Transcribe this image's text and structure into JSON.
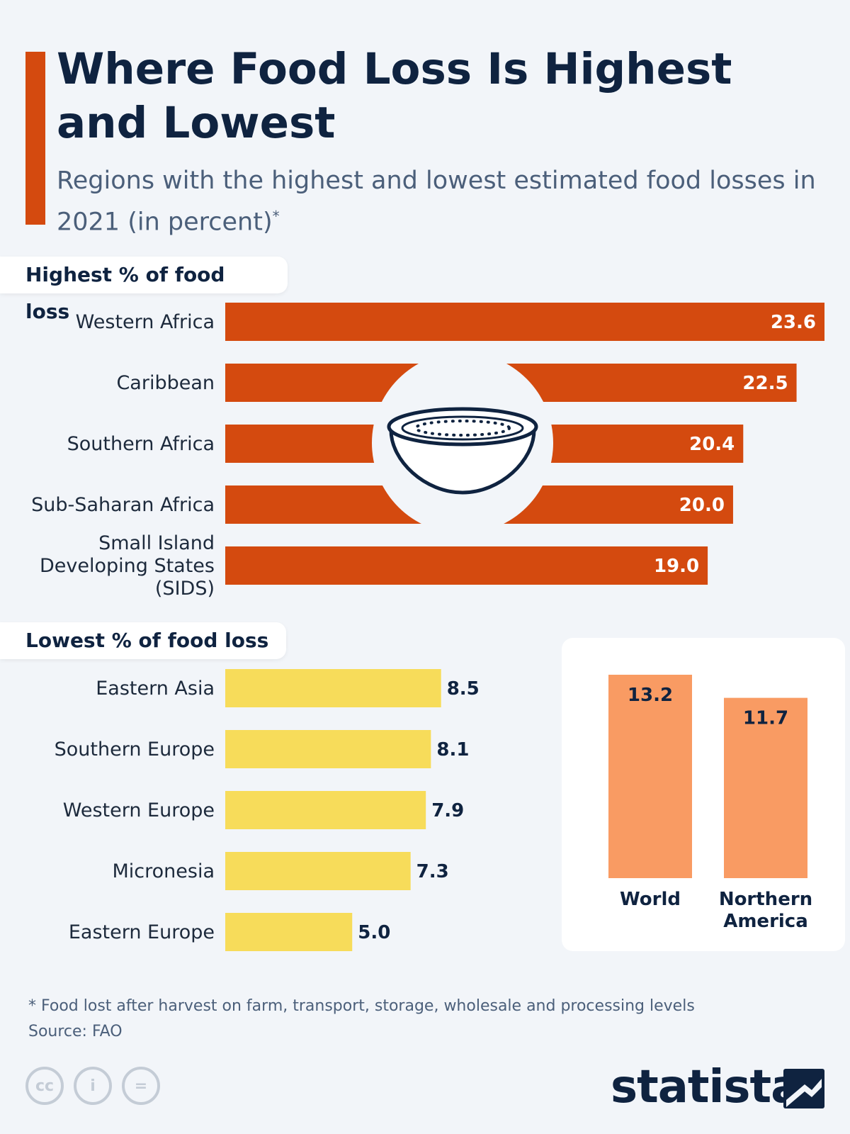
{
  "title": "Where Food Loss Is Highest and Lowest",
  "subtitle": "Regions with the highest and lowest estimated food losses in 2021 (in percent)",
  "subtitle_mark": "*",
  "colors": {
    "accent": "#d44a0f",
    "highest": "#d44a0f",
    "lowest": "#f7dc5a",
    "inset": "#f99b63",
    "navy": "#0f2340"
  },
  "chart_data": [
    {
      "type": "bar",
      "orientation": "horizontal",
      "title": "Highest % of food loss",
      "categories": [
        [
          "Western Africa"
        ],
        [
          "Caribbean"
        ],
        [
          "Southern Africa"
        ],
        [
          "Sub-Saharan Africa"
        ],
        [
          "Small Island",
          "Developing States",
          "(SIDS)"
        ]
      ],
      "values": [
        23.6,
        22.5,
        20.4,
        20.0,
        19.0
      ],
      "value_labels": [
        "23.6",
        "22.5",
        "20.4",
        "20.0",
        "19.0"
      ],
      "xlim": [
        0,
        23.6
      ]
    },
    {
      "type": "bar",
      "orientation": "horizontal",
      "title": "Lowest % of food loss",
      "categories": [
        [
          "Eastern Asia"
        ],
        [
          "Southern Europe"
        ],
        [
          "Western Europe"
        ],
        [
          "Micronesia"
        ],
        [
          "Eastern Europe"
        ]
      ],
      "values": [
        8.5,
        8.1,
        7.9,
        7.3,
        5.0
      ],
      "value_labels": [
        "8.5",
        "8.1",
        "7.9",
        "7.3",
        "5.0"
      ],
      "xlim": [
        0,
        23.6
      ]
    },
    {
      "type": "bar",
      "orientation": "vertical",
      "title": "",
      "categories": [
        [
          "World"
        ],
        [
          "Northern",
          "America"
        ]
      ],
      "values": [
        13.2,
        11.7
      ],
      "value_labels": [
        "13.2",
        "11.7"
      ],
      "ylim": [
        0,
        13.2
      ]
    }
  ],
  "illustration_icon": "bowl-icon",
  "footnote": "* Food lost after harvest on farm, transport, storage, wholesale and processing levels",
  "source": "Source: FAO",
  "license_icons": [
    "cc-icon",
    "attribution-icon",
    "no-derivatives-icon"
  ],
  "license_glyphs": [
    "cc",
    "=",
    "i"
  ],
  "brand": "statista"
}
